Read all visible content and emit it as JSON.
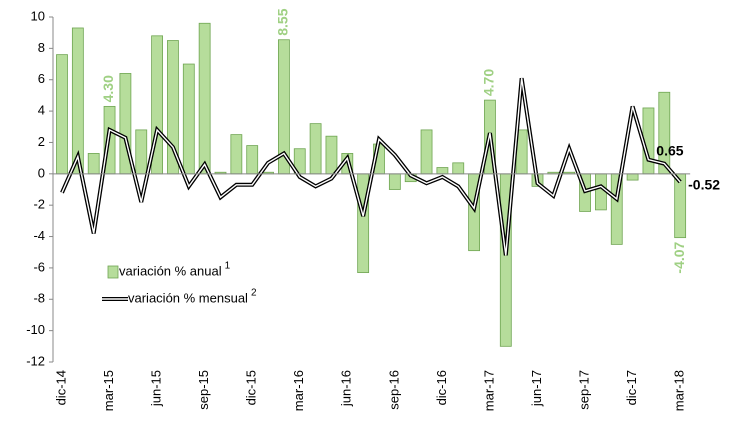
{
  "chart_data": {
    "type": "bar_line",
    "categories": [
      "dic-14",
      null,
      null,
      "mar-15",
      null,
      null,
      "jun-15",
      null,
      null,
      "sep-15",
      null,
      null,
      "dic-15",
      null,
      null,
      "mar-16",
      null,
      null,
      "jun-16",
      null,
      null,
      "sep-16",
      null,
      null,
      "dic-16",
      null,
      null,
      "mar-17",
      null,
      null,
      "jun-17",
      null,
      null,
      "sep-17",
      null,
      null,
      "dic-17",
      null,
      null,
      "mar-18"
    ],
    "series": [
      {
        "name": "variación % anual",
        "legend_note": "1",
        "type": "bar",
        "color": "#b6dd9b",
        "edge_color": "#6fa552",
        "label_color": "#9fd083",
        "values": [
          7.6,
          9.3,
          1.3,
          4.3,
          6.4,
          2.8,
          8.8,
          8.5,
          7.0,
          9.6,
          0.1,
          2.5,
          1.8,
          0.1,
          8.55,
          1.6,
          3.2,
          2.4,
          1.3,
          -6.3,
          1.9,
          -1.0,
          -0.5,
          2.8,
          0.4,
          0.7,
          -4.9,
          4.7,
          -11.0,
          2.8,
          -0.8,
          0.1,
          0.1,
          -2.4,
          -2.3,
          -4.5,
          -0.4,
          4.2,
          5.2,
          -4.07
        ],
        "value_labels": [
          null,
          null,
          null,
          "4.30",
          null,
          null,
          null,
          null,
          null,
          null,
          null,
          null,
          null,
          null,
          "8.55",
          null,
          null,
          null,
          null,
          null,
          null,
          null,
          null,
          null,
          null,
          null,
          null,
          "4.70",
          null,
          null,
          null,
          null,
          null,
          null,
          null,
          null,
          null,
          null,
          null,
          "-4.07"
        ]
      },
      {
        "name": "variación % mensual",
        "legend_note": "2",
        "type": "line",
        "color": "#000000",
        "inner_color": "#ffffff",
        "label_color": "#000000",
        "values": [
          -1.2,
          1.1,
          -3.8,
          2.8,
          2.3,
          -1.8,
          2.8,
          1.7,
          -0.8,
          0.6,
          -1.5,
          -0.7,
          -0.7,
          0.7,
          1.3,
          -0.2,
          -0.8,
          -0.3,
          1.0,
          -2.7,
          2.2,
          1.2,
          -0.1,
          -0.6,
          -0.2,
          -0.8,
          -2.2,
          2.6,
          -5.2,
          6.1,
          -0.6,
          -1.4,
          1.6,
          -1.1,
          -0.8,
          -1.6,
          4.3,
          0.9,
          0.65,
          -0.52
        ],
        "value_labels": [
          null,
          null,
          null,
          null,
          null,
          null,
          null,
          null,
          null,
          null,
          null,
          null,
          null,
          null,
          null,
          null,
          null,
          null,
          null,
          null,
          null,
          null,
          null,
          null,
          null,
          null,
          null,
          null,
          null,
          null,
          null,
          null,
          null,
          null,
          null,
          null,
          null,
          null,
          "0.65",
          "-0.52"
        ]
      }
    ],
    "ylim": [
      -12,
      10
    ],
    "yticks": [
      -12,
      -10,
      -8,
      -6,
      -4,
      -2,
      0,
      2,
      4,
      6,
      8,
      10
    ],
    "grid": false,
    "legend": "lower left"
  }
}
